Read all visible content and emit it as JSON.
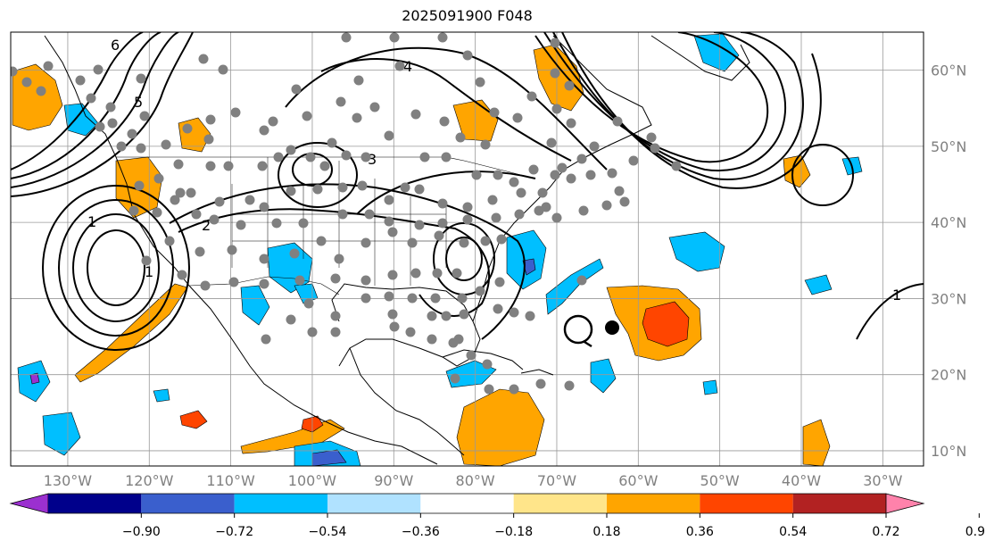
{
  "title": "2025091900 F048",
  "map": {
    "projection": "plate-carree",
    "lon_range": [
      -137,
      -25
    ],
    "lat_range": [
      8,
      65
    ],
    "graticule_step_deg": 10,
    "lat_labels": [
      "60°N",
      "50°N",
      "40°N",
      "30°N",
      "20°N",
      "10°N"
    ],
    "lon_labels": [
      "130°W",
      "120°W",
      "110°W",
      "100°W",
      "90°W",
      "80°W",
      "70°W",
      "60°W",
      "50°W",
      "40°W",
      "30°W"
    ],
    "storm_symbol": {
      "name": "tropical-cyclone-symbol",
      "lon": -66,
      "lat": 25
    },
    "storm_center_dot": {
      "lon": -62,
      "lat": 25.5
    },
    "station_dot_color": "#808080",
    "contour_color": "#000000",
    "contour_labels": [
      "1",
      "2",
      "3",
      "4",
      "5",
      "6"
    ]
  },
  "colorbar": {
    "ticks": [
      "−0.90",
      "−0.72",
      "−0.54",
      "−0.36",
      "−0.18",
      "0.18",
      "0.36",
      "0.54",
      "0.72",
      "0.90"
    ],
    "colors": [
      "#9b30d0",
      "#00008b",
      "#3a5fcd",
      "#00bfff",
      "#b0e2ff",
      "#ffffff",
      "#ffe58a",
      "#ffa500",
      "#ff4500",
      "#b22222",
      "#ff82ab"
    ]
  },
  "fill_colors": {
    "light_orange": "#ffa500",
    "red_orange": "#ff4500",
    "cyan": "#00bfff",
    "mid_blue": "#3a5fcd",
    "purple": "#9b30d0"
  }
}
